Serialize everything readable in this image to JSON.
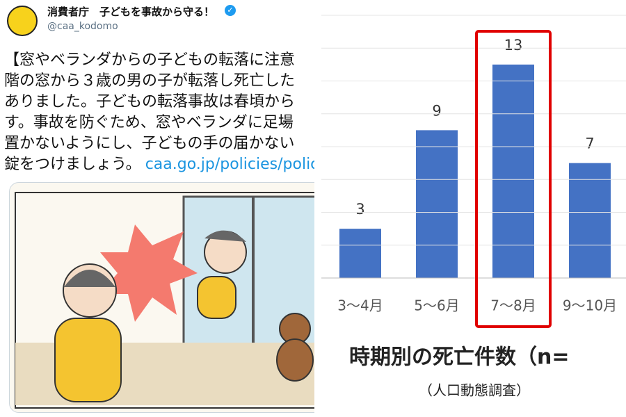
{
  "tweet": {
    "author": {
      "name": "消費者庁　子どもを事故から守る！",
      "handle": "@caa_kodomo"
    },
    "text_lines": [
      "【窓やベランダからの子どもの転落に注意",
      "階の窓から３歳の男の子が転落し死亡した",
      "ありました。子どもの転落事故は春頃から",
      "す。事故を防ぐため、窓やベランダに足場",
      "置かないようにし、子どもの手の届かない",
      "錠をつけましょう。"
    ],
    "link": "caa.go.jp/policies/polic"
  },
  "chart_data": {
    "type": "bar",
    "title": "時期別の死亡件数（n=",
    "subtitle": "（人口動態調査）",
    "categories": [
      "3〜4月",
      "5〜6月",
      "7〜8月",
      "9〜10月"
    ],
    "values": [
      3,
      9,
      13,
      7
    ],
    "color": "#4472c4",
    "ylim": [
      0,
      16
    ],
    "yticks": [
      0,
      2,
      4,
      6,
      8,
      10,
      12,
      14,
      16
    ],
    "grid": true,
    "highlight_index": 2,
    "highlight_color": "#e00000"
  }
}
